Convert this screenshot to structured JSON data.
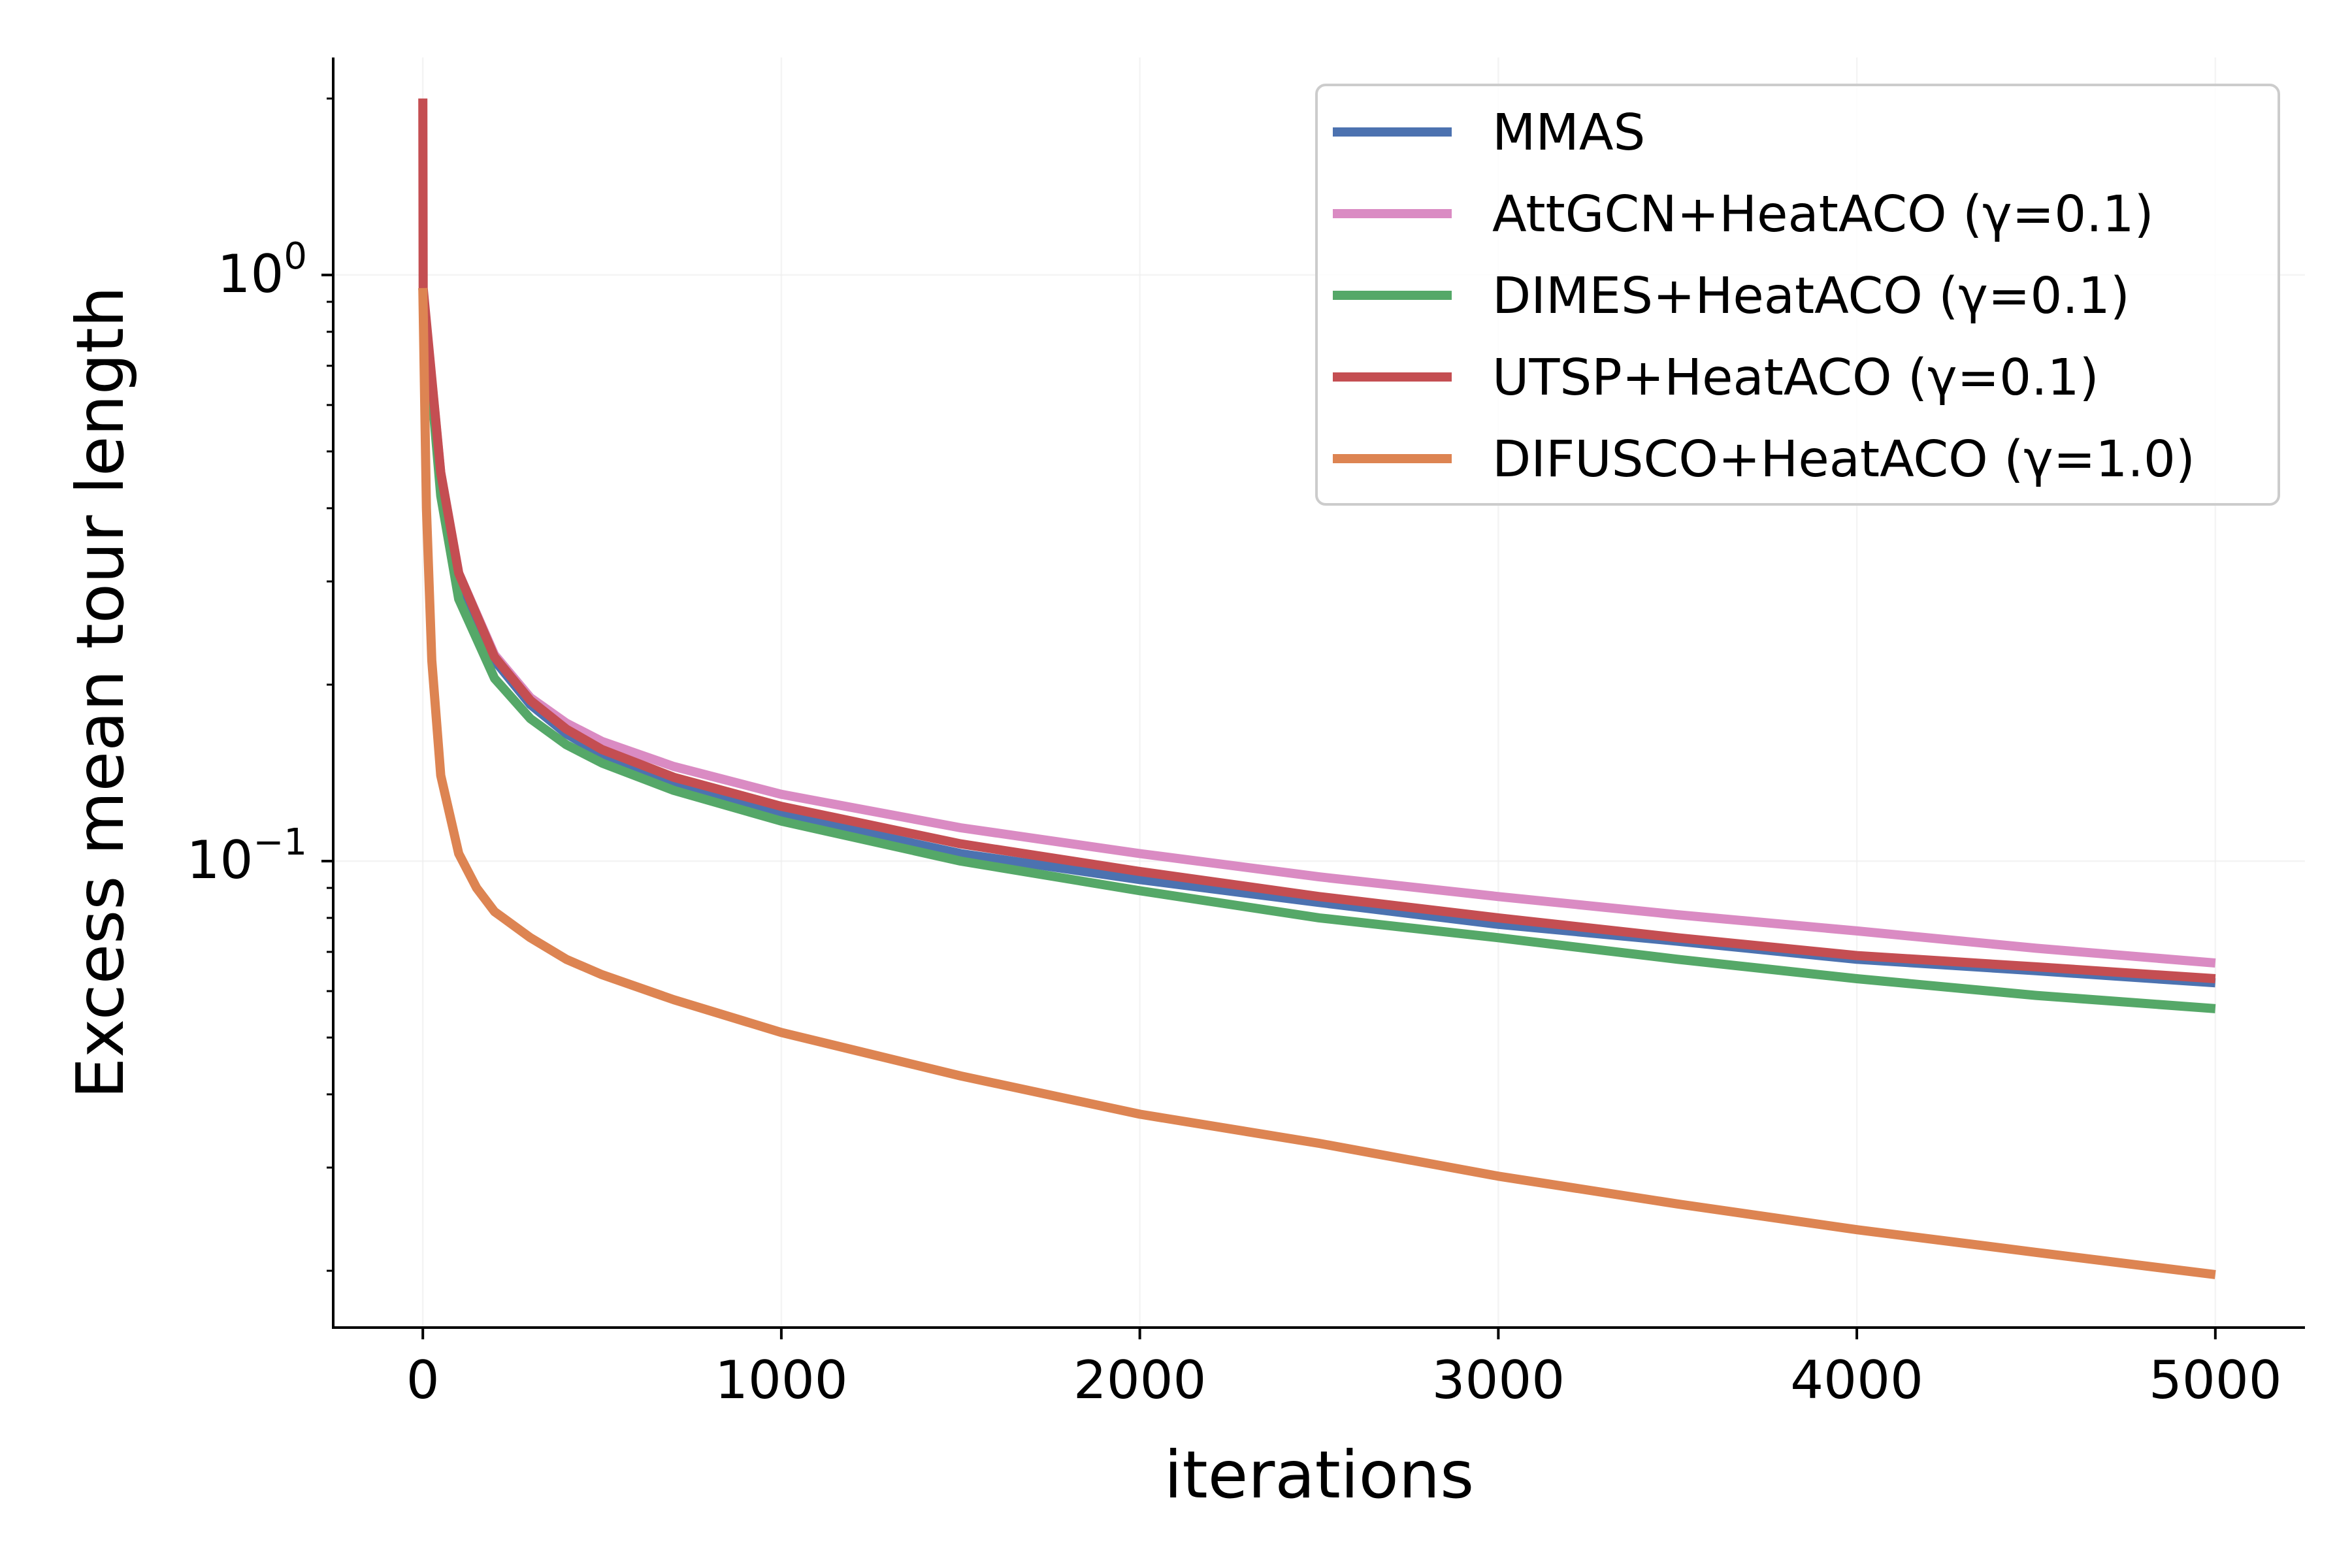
{
  "chart_data": {
    "type": "line",
    "title": "",
    "xlabel": "iterations",
    "ylabel": "Excess mean tour length",
    "xlim": [
      -250,
      5250
    ],
    "ylim": [
      0.016,
      2.35
    ],
    "yscale": "log",
    "grid": true,
    "legend_position": "top-right",
    "xticks": [
      {
        "value": 0,
        "label": "0"
      },
      {
        "value": 1000,
        "label": "1000"
      },
      {
        "value": 2000,
        "label": "2000"
      },
      {
        "value": 3000,
        "label": "3000"
      },
      {
        "value": 4000,
        "label": "4000"
      },
      {
        "value": 5000,
        "label": "5000"
      }
    ],
    "yticks": [
      {
        "value": 1.0,
        "base": "10",
        "exp": "0"
      },
      {
        "value": 0.1,
        "base": "10",
        "exp": "−1"
      }
    ],
    "series": [
      {
        "name": "MMAS",
        "color": "#4c72b0",
        "x": [
          0,
          50,
          100,
          200,
          300,
          400,
          500,
          700,
          1000,
          1500,
          2000,
          2500,
          3000,
          3500,
          4000,
          4500,
          5000
        ],
        "y": [
          0.95,
          0.45,
          0.3,
          0.22,
          0.185,
          0.165,
          0.152,
          0.137,
          0.12,
          0.103,
          0.093,
          0.085,
          0.078,
          0.073,
          0.068,
          0.065,
          0.062
        ]
      },
      {
        "name": "AttGCN+HeatACO (γ=0.1)",
        "color": "#da8bc3",
        "x": [
          0,
          50,
          100,
          200,
          300,
          400,
          500,
          700,
          1000,
          1500,
          2000,
          2500,
          3000,
          3500,
          4000,
          4500,
          5000
        ],
        "y": [
          0.95,
          0.46,
          0.31,
          0.225,
          0.19,
          0.172,
          0.16,
          0.145,
          0.13,
          0.114,
          0.103,
          0.094,
          0.087,
          0.081,
          0.076,
          0.071,
          0.067
        ]
      },
      {
        "name": "DIMES+HeatACO (γ=0.1)",
        "color": "#55a868",
        "x": [
          0,
          50,
          100,
          200,
          300,
          400,
          500,
          700,
          1000,
          1500,
          2000,
          2500,
          3000,
          3500,
          4000,
          4500,
          5000
        ],
        "y": [
          0.95,
          0.42,
          0.28,
          0.205,
          0.175,
          0.158,
          0.147,
          0.132,
          0.117,
          0.1,
          0.089,
          0.08,
          0.074,
          0.068,
          0.063,
          0.059,
          0.056
        ]
      },
      {
        "name": "UTSP+HeatACO (γ=0.1)",
        "color": "#c44e52",
        "x": [
          0,
          1,
          50,
          100,
          200,
          300,
          400,
          500,
          700,
          1000,
          1500,
          2000,
          2500,
          3000,
          3500,
          4000,
          4500,
          5000
        ],
        "y": [
          2.0,
          0.95,
          0.46,
          0.31,
          0.223,
          0.188,
          0.168,
          0.155,
          0.139,
          0.124,
          0.107,
          0.096,
          0.087,
          0.08,
          0.074,
          0.069,
          0.066,
          0.063
        ]
      },
      {
        "name": "DIFUSCO+HeatACO (γ=1.0)",
        "color": "#dd8452",
        "x": [
          0,
          10,
          25,
          50,
          100,
          150,
          200,
          300,
          400,
          500,
          700,
          1000,
          1500,
          2000,
          2500,
          3000,
          3500,
          4000,
          4500,
          5000
        ],
        "y": [
          0.95,
          0.4,
          0.22,
          0.14,
          0.103,
          0.09,
          0.082,
          0.074,
          0.068,
          0.064,
          0.058,
          0.051,
          0.043,
          0.037,
          0.033,
          0.029,
          0.026,
          0.0235,
          0.0215,
          0.0197
        ]
      }
    ]
  }
}
